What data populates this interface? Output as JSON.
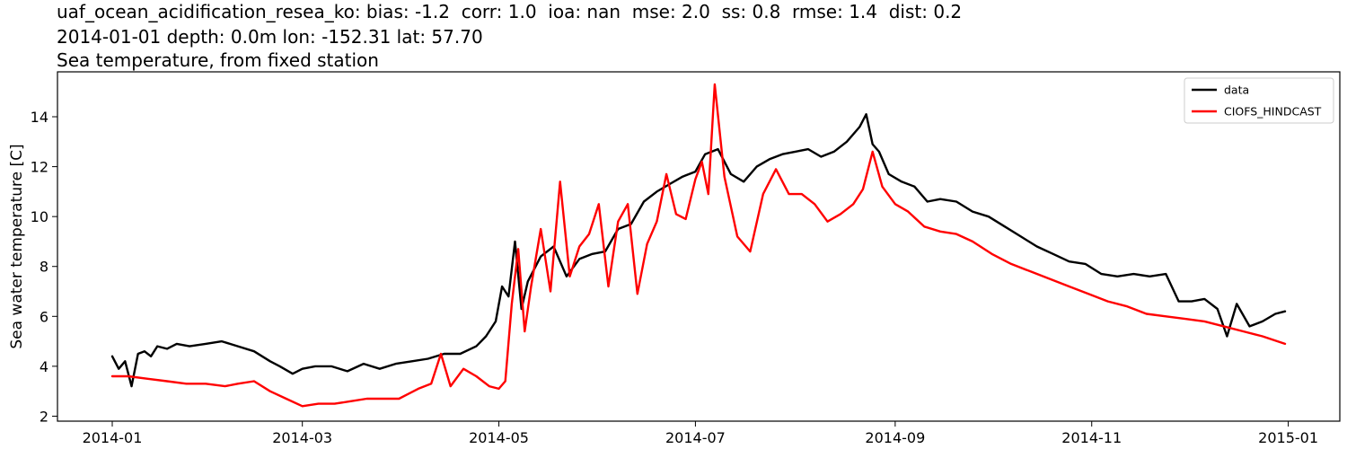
{
  "title": {
    "line1": "uaf_ocean_acidification_resea_ko: bias: -1.2  corr: 1.0  ioa: nan  mse: 2.0  ss: 0.8  rmse: 1.4  dist: 0.2",
    "line2": "2014-01-01 depth: 0.0m lon: -152.31 lat: 57.70",
    "line3": "Sea temperature, from fixed station"
  },
  "chart_data": {
    "type": "line",
    "title": "Sea temperature, from fixed station",
    "xlabel": "",
    "ylabel": "Sea water temperature [C]",
    "xlim": [
      "2013-12-15",
      "2015-01-17"
    ],
    "ylim": [
      1.8,
      15.8
    ],
    "xticks": [
      "2014-01",
      "2014-03",
      "2014-05",
      "2014-07",
      "2014-09",
      "2014-11",
      "2015-01"
    ],
    "yticks": [
      2,
      4,
      6,
      8,
      10,
      12,
      14
    ],
    "grid": false,
    "legend_position": "top-right",
    "series": [
      {
        "name": "data",
        "color": "#000000",
        "x": [
          "2014-01-01",
          "2014-01-03",
          "2014-01-05",
          "2014-01-07",
          "2014-01-09",
          "2014-01-11",
          "2014-01-13",
          "2014-01-15",
          "2014-01-18",
          "2014-01-21",
          "2014-01-25",
          "2014-01-30",
          "2014-02-04",
          "2014-02-09",
          "2014-02-14",
          "2014-02-19",
          "2014-02-22",
          "2014-02-26",
          "2014-03-01",
          "2014-03-05",
          "2014-03-10",
          "2014-03-15",
          "2014-03-20",
          "2014-03-25",
          "2014-03-30",
          "2014-04-04",
          "2014-04-09",
          "2014-04-14",
          "2014-04-19",
          "2014-04-24",
          "2014-04-27",
          "2014-04-30",
          "2014-05-02",
          "2014-05-04",
          "2014-05-06",
          "2014-05-08",
          "2014-05-10",
          "2014-05-14",
          "2014-05-18",
          "2014-05-22",
          "2014-05-26",
          "2014-05-30",
          "2014-06-03",
          "2014-06-07",
          "2014-06-11",
          "2014-06-15",
          "2014-06-19",
          "2014-06-23",
          "2014-06-27",
          "2014-07-01",
          "2014-07-04",
          "2014-07-08",
          "2014-07-12",
          "2014-07-16",
          "2014-07-20",
          "2014-07-24",
          "2014-07-28",
          "2014-08-01",
          "2014-08-05",
          "2014-08-09",
          "2014-08-13",
          "2014-08-17",
          "2014-08-21",
          "2014-08-23",
          "2014-08-25",
          "2014-08-27",
          "2014-08-30",
          "2014-09-03",
          "2014-09-07",
          "2014-09-11",
          "2014-09-15",
          "2014-09-20",
          "2014-09-25",
          "2014-09-30",
          "2014-10-05",
          "2014-10-10",
          "2014-10-15",
          "2014-10-20",
          "2014-10-25",
          "2014-10-30",
          "2014-11-04",
          "2014-11-09",
          "2014-11-14",
          "2014-11-19",
          "2014-11-24",
          "2014-11-28",
          "2014-12-02",
          "2014-12-06",
          "2014-12-10",
          "2014-12-13",
          "2014-12-16",
          "2014-12-20",
          "2014-12-24",
          "2014-12-28",
          "2014-12-31"
        ],
        "y": [
          4.4,
          3.9,
          4.2,
          3.2,
          4.5,
          4.6,
          4.4,
          4.8,
          4.7,
          4.9,
          4.8,
          4.9,
          5.0,
          4.8,
          4.6,
          4.2,
          4.0,
          3.7,
          3.9,
          4.0,
          4.0,
          3.8,
          4.1,
          3.9,
          4.1,
          4.2,
          4.3,
          4.5,
          4.5,
          4.8,
          5.2,
          5.8,
          7.2,
          6.8,
          9.0,
          6.3,
          7.4,
          8.4,
          8.8,
          7.6,
          8.3,
          8.5,
          8.6,
          9.5,
          9.7,
          10.6,
          11.0,
          11.3,
          11.6,
          11.8,
          12.5,
          12.7,
          11.7,
          11.4,
          12.0,
          12.3,
          12.5,
          12.6,
          12.7,
          12.4,
          12.6,
          13.0,
          13.6,
          14.1,
          12.9,
          12.6,
          11.7,
          11.4,
          11.2,
          10.6,
          10.7,
          10.6,
          10.2,
          10.0,
          9.6,
          9.2,
          8.8,
          8.5,
          8.2,
          8.1,
          7.7,
          7.6,
          7.7,
          7.6,
          7.7,
          6.6,
          6.6,
          6.7,
          6.3,
          5.2,
          6.5,
          5.6,
          5.8,
          6.1,
          6.2
        ]
      },
      {
        "name": "CIOFS_HINDCAST",
        "color": "#ff0000",
        "x": [
          "2014-01-01",
          "2014-01-06",
          "2014-01-12",
          "2014-01-18",
          "2014-01-24",
          "2014-01-30",
          "2014-02-05",
          "2014-02-09",
          "2014-02-14",
          "2014-02-19",
          "2014-02-24",
          "2014-03-01",
          "2014-03-06",
          "2014-03-11",
          "2014-03-16",
          "2014-03-21",
          "2014-03-26",
          "2014-03-31",
          "2014-04-03",
          "2014-04-06",
          "2014-04-10",
          "2014-04-13",
          "2014-04-16",
          "2014-04-20",
          "2014-04-24",
          "2014-04-28",
          "2014-05-01",
          "2014-05-03",
          "2014-05-05",
          "2014-05-07",
          "2014-05-09",
          "2014-05-11",
          "2014-05-14",
          "2014-05-17",
          "2014-05-20",
          "2014-05-23",
          "2014-05-26",
          "2014-05-29",
          "2014-06-01",
          "2014-06-04",
          "2014-06-07",
          "2014-06-10",
          "2014-06-13",
          "2014-06-16",
          "2014-06-19",
          "2014-06-22",
          "2014-06-25",
          "2014-06-28",
          "2014-07-01",
          "2014-07-03",
          "2014-07-05",
          "2014-07-07",
          "2014-07-10",
          "2014-07-14",
          "2014-07-18",
          "2014-07-22",
          "2014-07-26",
          "2014-07-30",
          "2014-08-03",
          "2014-08-07",
          "2014-08-11",
          "2014-08-15",
          "2014-08-19",
          "2014-08-22",
          "2014-08-25",
          "2014-08-28",
          "2014-09-01",
          "2014-09-05",
          "2014-09-10",
          "2014-09-15",
          "2014-09-20",
          "2014-09-25",
          "2014-10-01",
          "2014-10-07",
          "2014-10-13",
          "2014-10-19",
          "2014-10-25",
          "2014-10-31",
          "2014-11-06",
          "2014-11-12",
          "2014-11-18",
          "2014-11-24",
          "2014-11-30",
          "2014-12-06",
          "2014-12-12",
          "2014-12-18",
          "2014-12-24",
          "2014-12-31"
        ],
        "y": [
          3.6,
          3.6,
          3.5,
          3.4,
          3.3,
          3.3,
          3.2,
          3.3,
          3.4,
          3.0,
          2.7,
          2.4,
          2.5,
          2.5,
          2.6,
          2.7,
          2.7,
          2.7,
          2.9,
          3.1,
          3.3,
          4.5,
          3.2,
          3.9,
          3.6,
          3.2,
          3.1,
          3.4,
          6.5,
          8.7,
          5.4,
          7.2,
          9.5,
          7.0,
          11.4,
          7.6,
          8.8,
          9.3,
          10.5,
          7.2,
          9.8,
          10.5,
          6.9,
          8.9,
          9.8,
          11.7,
          10.1,
          9.9,
          11.5,
          12.2,
          10.9,
          15.3,
          11.6,
          9.2,
          8.6,
          10.9,
          11.9,
          10.9,
          10.9,
          10.5,
          9.8,
          10.1,
          10.5,
          11.1,
          12.6,
          11.2,
          10.5,
          10.2,
          9.6,
          9.4,
          9.3,
          9.0,
          8.5,
          8.1,
          7.8,
          7.5,
          7.2,
          6.9,
          6.6,
          6.4,
          6.1,
          6.0,
          5.9,
          5.8,
          5.6,
          5.4,
          5.2,
          4.9
        ]
      }
    ]
  }
}
